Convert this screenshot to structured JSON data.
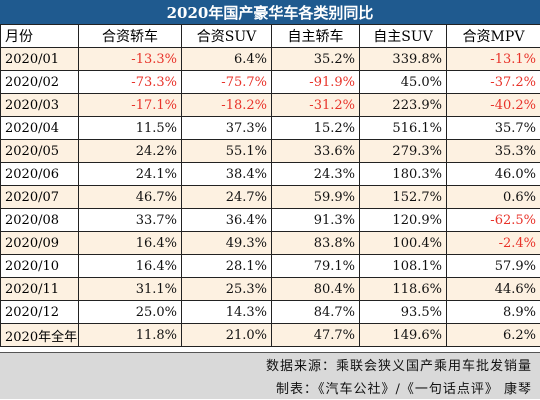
{
  "title": "2020年国产豪华车各类别同比",
  "headers": [
    "月份",
    "合资轿车",
    "合资SUV",
    "自主轿车",
    "自主SUV",
    "合资MPV"
  ],
  "rows": [
    {
      "month": "2020/01",
      "values": [
        "-13.3%",
        "6.4%",
        "35.2%",
        "339.8%",
        "-13.1%"
      ]
    },
    {
      "month": "2020/02",
      "values": [
        "-73.3%",
        "-75.7%",
        "-91.9%",
        "45.0%",
        "-37.2%"
      ]
    },
    {
      "month": "2020/03",
      "values": [
        "-17.1%",
        "-18.2%",
        "-31.2%",
        "223.9%",
        "-40.2%"
      ]
    },
    {
      "month": "2020/04",
      "values": [
        "11.5%",
        "37.3%",
        "15.2%",
        "516.1%",
        "35.7%"
      ]
    },
    {
      "month": "2020/05",
      "values": [
        "24.2%",
        "55.1%",
        "33.6%",
        "279.3%",
        "35.3%"
      ]
    },
    {
      "month": "2020/06",
      "values": [
        "24.1%",
        "38.4%",
        "24.3%",
        "180.3%",
        "46.0%"
      ]
    },
    {
      "month": "2020/07",
      "values": [
        "46.7%",
        "24.7%",
        "59.9%",
        "152.7%",
        "0.6%"
      ]
    },
    {
      "month": "2020/08",
      "values": [
        "33.7%",
        "36.4%",
        "91.3%",
        "120.9%",
        "-62.5%"
      ]
    },
    {
      "month": "2020/09",
      "values": [
        "16.4%",
        "49.3%",
        "83.8%",
        "100.4%",
        "-2.4%"
      ]
    },
    {
      "month": "2020/10",
      "values": [
        "16.4%",
        "28.1%",
        "79.1%",
        "108.1%",
        "57.9%"
      ]
    },
    {
      "month": "2020/11",
      "values": [
        "31.1%",
        "25.3%",
        "80.4%",
        "118.6%",
        "44.6%"
      ]
    },
    {
      "month": "2020/12",
      "values": [
        "25.0%",
        "14.3%",
        "84.7%",
        "93.5%",
        "8.9%"
      ]
    },
    {
      "month": "2020年全年",
      "values": [
        "11.8%",
        "21.0%",
        "47.7%",
        "149.6%",
        "6.2%"
      ]
    }
  ],
  "source": "数据来源：乘联会狭义国产乘用车批发销量",
  "credit": "制表：《汽车公社》/《一句话点评》 康琴",
  "colors": {
    "title_bg": "#1f5a8f",
    "negative": "#e8332a",
    "stripe": "#fdf1e1",
    "footer_bg": "#d9d9d9"
  }
}
